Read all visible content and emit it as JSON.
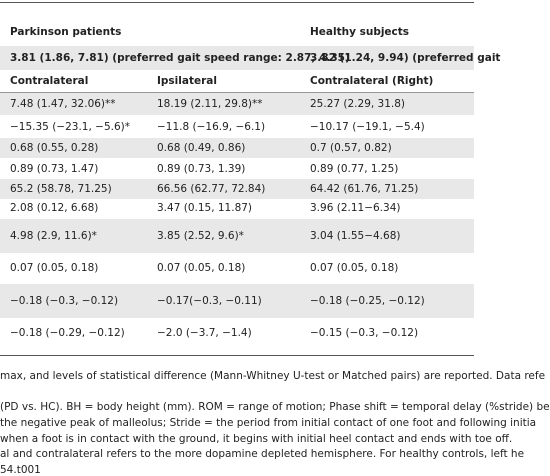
{
  "table": {
    "group_headers": [
      "Parkinson patients",
      "Healthy subjects"
    ],
    "summary": [
      "3.81 (1.86, 7.81) (preferred gait speed range: 2.87, 4.35)",
      "3.82 (1.24, 9.94) (preferred gait"
    ],
    "column_headers": [
      "Contralateral",
      "Ipsilateral",
      "Contralateral (Right)"
    ],
    "rows": [
      [
        "7.48 (1.47, 32.06)**",
        "18.19 (2.11, 29.8)**",
        "25.27 (2.29, 31.8)"
      ],
      [
        "−15.35 (−23.1, −5.6)*",
        "−11.8 (−16.9, −6.1)",
        "−10.17 (−19.1, −5.4)"
      ],
      [
        "0.68 (0.55, 0.28)",
        "0.68 (0.49, 0.86)",
        "0.7 (0.57, 0.82)"
      ],
      [
        "0.89 (0.73, 1.47)",
        "0.89 (0.73, 1.39)",
        "0.89 (0.77, 1.25)"
      ],
      [
        "65.2 (58.78, 71.25)",
        "66.56 (62.77, 72.84)",
        "64.42 (61.76, 71.25)"
      ],
      [
        "2.08 (0.12, 6.68)",
        "3.47 (0.15, 11.87)",
        "3.96 (2.11−6.34)"
      ],
      [
        "4.98 (2.9, 11.6)*",
        "3.85 (2.52, 9.6)*",
        "3.04 (1.55−4.68)"
      ],
      [
        "0.07 (0.05, 0.18)",
        "0.07 (0.05, 0.18)",
        "0.07 (0.05, 0.18)"
      ],
      [
        "−0.18 (−0.3, −0.12)",
        "−0.17(−0.3, −0.11)",
        "−0.18 (−0.25, −0.12)"
      ],
      [
        "−0.18 (−0.29, −0.12)",
        "−2.0 (−3.7, −1.4)",
        "−0.15 (−0.3, −0.12)"
      ]
    ]
  },
  "footnotes": [
    "max, and levels of statistical difference (Mann-Whitney U-test or Matched pairs) are reported. Data refe",
    "(PD vs. HC). BH = body height (mm). ROM = range of motion; Phase shift = temporal delay (%stride) be",
    "the negative peak of malleolus; Stride = the period from initial contact of one foot and following initia",
    "when a foot is in contact with the ground, it begins with initial heel contact and ends with toe off.",
    "al and contralateral refers to the more dopamine depleted hemisphere. For healthy controls, left he",
    "54.t001"
  ]
}
